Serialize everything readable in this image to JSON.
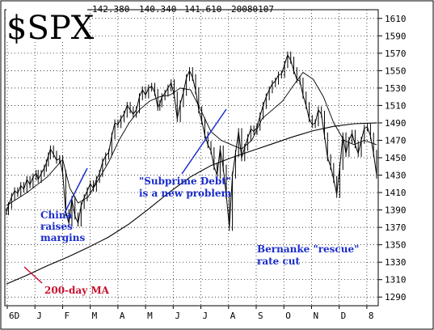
{
  "chart_data": {
    "type": "line",
    "title": "$SPX",
    "header_values": [
      "142.380",
      "140.340",
      "141.610",
      "20080107"
    ],
    "x_labels": [
      "6D",
      "J",
      "F",
      "M",
      "A",
      "M",
      "J",
      "J",
      "A",
      "S",
      "O",
      "N",
      "D",
      "8"
    ],
    "y_ticks": [
      1290,
      1310,
      1330,
      1350,
      1370,
      1390,
      1410,
      1430,
      1450,
      1470,
      1490,
      1510,
      1530,
      1550,
      1570,
      1590,
      1610
    ],
    "ylim": [
      1280,
      1620
    ],
    "grid": true,
    "price_series": {
      "t": [
        0,
        2,
        5,
        8,
        11,
        14,
        17,
        20,
        23,
        26,
        29,
        31,
        34,
        37,
        39,
        41,
        43,
        46,
        49,
        52,
        55,
        58,
        61,
        64,
        67,
        70,
        73,
        76,
        79,
        82,
        85,
        88,
        91,
        94,
        97,
        100,
        103,
        106,
        109,
        112,
        115,
        118,
        121,
        124,
        127,
        130,
        133,
        136,
        139,
        142,
        145,
        148,
        150,
        152,
        155,
        158,
        161,
        164,
        167,
        170,
        173,
        176,
        179,
        182,
        185,
        188,
        191,
        194,
        197,
        200,
        203,
        206,
        209,
        212,
        215,
        218,
        221,
        224,
        227,
        230,
        233,
        236,
        239,
        242,
        245,
        248,
        251,
        254,
        257,
        260,
        263,
        266,
        269,
        272,
        275,
        278,
        281,
        284,
        287,
        290,
        293,
        296,
        299,
        302,
        305,
        308,
        311,
        314,
        317,
        320,
        323,
        326,
        329,
        332,
        335,
        338,
        341,
        344,
        347,
        350,
        353,
        356,
        359,
        362
      ],
      "values": [
        1388,
        1395,
        1405,
        1412,
        1409,
        1418,
        1414,
        1425,
        1419,
        1428,
        1432,
        1425,
        1432,
        1438,
        1444,
        1452,
        1460,
        1454,
        1447,
        1449,
        1432,
        1387,
        1375,
        1402,
        1383,
        1375,
        1395,
        1404,
        1412,
        1420,
        1415,
        1425,
        1432,
        1445,
        1452,
        1456,
        1475,
        1490,
        1488,
        1495,
        1500,
        1510,
        1505,
        1500,
        1505,
        1520,
        1528,
        1522,
        1530,
        1532,
        1525,
        1508,
        1512,
        1520,
        1524,
        1530,
        1536,
        1522,
        1495,
        1512,
        1525,
        1542,
        1550,
        1542,
        1527,
        1505,
        1492,
        1476,
        1465,
        1458,
        1440,
        1430,
        1460,
        1438,
        1407,
        1370,
        1430,
        1455,
        1480,
        1450,
        1462,
        1473,
        1483,
        1480,
        1485,
        1498,
        1510,
        1520,
        1528,
        1535,
        1538,
        1545,
        1546,
        1557,
        1568,
        1562,
        1550,
        1540,
        1538,
        1522,
        1510,
        1495,
        1488,
        1490,
        1505,
        1500,
        1475,
        1450,
        1440,
        1425,
        1408,
        1440,
        1475,
        1455,
        1470,
        1478,
        1465,
        1455,
        1470,
        1484,
        1485,
        1475,
        1455,
        1430
      ]
    },
    "ma200_series": {
      "t": [
        0,
        20,
        40,
        60,
        80,
        100,
        120,
        140,
        160,
        180,
        200,
        220,
        240,
        260,
        280,
        300,
        320,
        340,
        362
      ],
      "values": [
        1305,
        1315,
        1326,
        1336,
        1347,
        1359,
        1374,
        1392,
        1411,
        1428,
        1441,
        1450,
        1458,
        1466,
        1474,
        1481,
        1486,
        1489,
        1490
      ]
    },
    "ma20_series": {
      "t": [
        0,
        20,
        40,
        55,
        62,
        70,
        80,
        90,
        100,
        110,
        120,
        130,
        140,
        150,
        160,
        170,
        180,
        190,
        200,
        210,
        220,
        230,
        240,
        250,
        260,
        270,
        280,
        290,
        300,
        310,
        320,
        330,
        340,
        350,
        362
      ],
      "values": [
        1395,
        1410,
        1428,
        1448,
        1415,
        1398,
        1405,
        1425,
        1445,
        1470,
        1490,
        1505,
        1515,
        1520,
        1522,
        1530,
        1528,
        1505,
        1480,
        1470,
        1465,
        1460,
        1470,
        1495,
        1505,
        1515,
        1532,
        1548,
        1540,
        1520,
        1490,
        1470,
        1465,
        1470,
        1465
      ]
    },
    "annotations": [
      {
        "lines": [
          "China",
          "raises",
          "margins"
        ],
        "color": "#1a2ccc"
      },
      {
        "lines": [
          "\"Subprime Debt\"",
          "is a new problem"
        ],
        "color": "#1a2ccc"
      },
      {
        "lines": [
          "Bernanke \"rescue\"",
          "rate cut"
        ],
        "color": "#1a2ccc"
      },
      {
        "lines": [
          "200-day MA"
        ],
        "color": "#c8102e"
      }
    ]
  }
}
